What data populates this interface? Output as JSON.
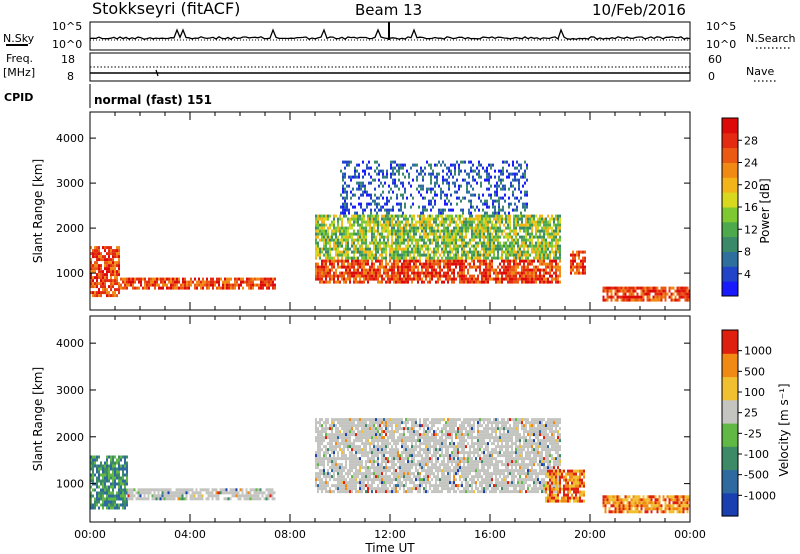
{
  "header": {
    "station": "Stokkseyri (fitACF)",
    "beam": "Beam 13",
    "date": "10/Feb/2016"
  },
  "top_panels": {
    "nsky_label": "N.Sky",
    "nsky_ticks": [
      "10^5",
      "10^0"
    ],
    "nsearch_label": "N.Search",
    "nsearch_ticks": [
      "10^5",
      "10^0"
    ],
    "freq_label": "Freq.",
    "freq_unit": "[MHz]",
    "freq_ticks": [
      "18",
      "8"
    ],
    "nave_label": "Nave",
    "nave_ticks": [
      "60",
      "0"
    ],
    "cpid_label": "CPID",
    "cpid_text": "normal (fast) 151"
  },
  "chart_data": [
    {
      "type": "heatmap",
      "name": "power",
      "xlabel": "",
      "ylabel": "Slant Range [km]",
      "x_range": [
        0,
        24
      ],
      "ylim": [
        180,
        4580
      ],
      "y_ticks": [
        "1000",
        "2000",
        "3000",
        "4000"
      ],
      "colorbar": {
        "label": "Power [dB]",
        "ticks": [
          "28",
          "24",
          "20",
          "16",
          "12",
          "8",
          "4"
        ],
        "colors": [
          "#1a1aff",
          "#2244c8",
          "#2e6f9e",
          "#3a8a6a",
          "#4ea84c",
          "#7ec832",
          "#d8d81e",
          "#f2b418",
          "#f08a14",
          "#ea5a12",
          "#e42a10",
          "#dd0a0a"
        ]
      },
      "echo_bands": [
        {
          "t": [
            0.0,
            1.2
          ],
          "range": [
            500,
            1600
          ],
          "level": "high"
        },
        {
          "t": [
            1.2,
            7.4
          ],
          "range": [
            650,
            900
          ],
          "level": "high"
        },
        {
          "t": [
            9.0,
            18.8
          ],
          "range": [
            800,
            1300
          ],
          "level": "high"
        },
        {
          "t": [
            9.0,
            18.8
          ],
          "range": [
            1300,
            2300
          ],
          "level": "mid"
        },
        {
          "t": [
            10.0,
            17.5
          ],
          "range": [
            2300,
            3500
          ],
          "level": "low"
        },
        {
          "t": [
            19.2,
            19.8
          ],
          "range": [
            1000,
            1500
          ],
          "level": "high"
        },
        {
          "t": [
            20.5,
            24.0
          ],
          "range": [
            400,
            700
          ],
          "level": "high"
        }
      ]
    },
    {
      "type": "heatmap",
      "name": "velocity",
      "xlabel": "Time UT",
      "ylabel": "Slant Range [km]",
      "x_range": [
        0,
        24
      ],
      "ylim": [
        180,
        4580
      ],
      "y_ticks": [
        "1000",
        "2000",
        "3000",
        "4000"
      ],
      "x_ticks": [
        "00:00",
        "04:00",
        "08:00",
        "12:00",
        "16:00",
        "20:00",
        "00:00"
      ],
      "colorbar": {
        "label": "Velocity [m s⁻¹]",
        "ticks": [
          "1000",
          "500",
          "100",
          "25",
          "-25",
          "-100",
          "-500",
          "-1000"
        ],
        "colors": [
          "#1a3fb0",
          "#2e6aa0",
          "#3c8a66",
          "#62b844",
          "#c4c4c0",
          "#f0c030",
          "#f08a14",
          "#e0200e"
        ]
      },
      "echo_bands": [
        {
          "t": [
            0.0,
            1.5
          ],
          "range": [
            500,
            1600
          ],
          "level": "positive"
        },
        {
          "t": [
            1.5,
            7.4
          ],
          "range": [
            650,
            900
          ],
          "level": "ground"
        },
        {
          "t": [
            9.0,
            18.8
          ],
          "range": [
            800,
            2400
          ],
          "level": "ground"
        },
        {
          "t": [
            18.2,
            19.8
          ],
          "range": [
            600,
            1300
          ],
          "level": "negative"
        },
        {
          "t": [
            20.5,
            24.0
          ],
          "range": [
            400,
            750
          ],
          "level": "negative"
        }
      ]
    }
  ]
}
